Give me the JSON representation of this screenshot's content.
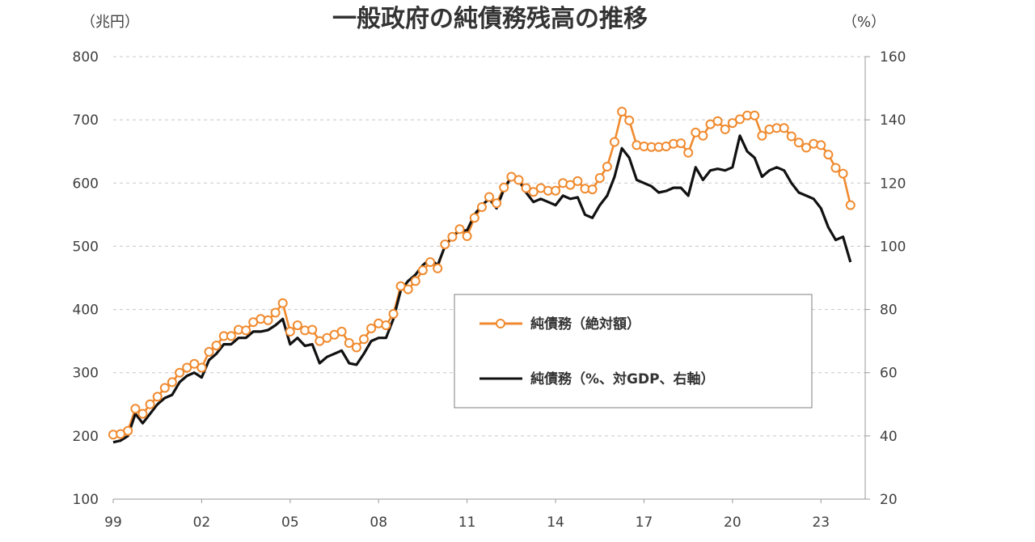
{
  "chart_data": {
    "type": "line",
    "title": "一般政府の純債務残高の推移",
    "y_left_unit": "（兆円）",
    "y_right_unit": "（%）",
    "x_ticks": [
      "99",
      "02",
      "05",
      "08",
      "11",
      "14",
      "17",
      "20",
      "23"
    ],
    "x_tick_values": [
      1999,
      2002,
      2005,
      2008,
      2011,
      2014,
      2017,
      2020,
      2023
    ],
    "xlim": [
      1999,
      2024.5
    ],
    "y_left_ticks": [
      "100",
      "200",
      "300",
      "400",
      "500",
      "600",
      "700",
      "800"
    ],
    "y_left_range": [
      100,
      800
    ],
    "y_right_ticks": [
      "20",
      "40",
      "60",
      "80",
      "100",
      "120",
      "140",
      "160"
    ],
    "y_right_range": [
      20,
      160
    ],
    "grid": "horizontal dashed",
    "legend_position": "center-right",
    "series": [
      {
        "name": "純債務（絶対額）",
        "axis": "left",
        "color": "#F08A2E",
        "marker": "circle-open",
        "x": [
          1999.0,
          1999.25,
          1999.5,
          1999.75,
          2000.0,
          2000.25,
          2000.5,
          2000.75,
          2001.0,
          2001.25,
          2001.5,
          2001.75,
          2002.0,
          2002.25,
          2002.5,
          2002.75,
          2003.0,
          2003.25,
          2003.5,
          2003.75,
          2004.0,
          2004.25,
          2004.5,
          2004.75,
          2005.0,
          2005.25,
          2005.5,
          2005.75,
          2006.0,
          2006.25,
          2006.5,
          2006.75,
          2007.0,
          2007.25,
          2007.5,
          2007.75,
          2008.0,
          2008.25,
          2008.5,
          2008.75,
          2009.0,
          2009.25,
          2009.5,
          2009.75,
          2010.0,
          2010.25,
          2010.5,
          2010.75,
          2011.0,
          2011.25,
          2011.5,
          2011.75,
          2012.0,
          2012.25,
          2012.5,
          2012.75,
          2013.0,
          2013.25,
          2013.5,
          2013.75,
          2014.0,
          2014.25,
          2014.5,
          2014.75,
          2015.0,
          2015.25,
          2015.5,
          2015.75,
          2016.0,
          2016.25,
          2016.5,
          2016.75,
          2017.0,
          2017.25,
          2017.5,
          2017.75,
          2018.0,
          2018.25,
          2018.5,
          2018.75,
          2019.0,
          2019.25,
          2019.5,
          2019.75,
          2020.0,
          2020.25,
          2020.5,
          2020.75,
          2021.0,
          2021.25,
          2021.5,
          2021.75,
          2022.0,
          2022.25,
          2022.5,
          2022.75,
          2023.0,
          2023.25,
          2023.5,
          2023.75,
          2024.0
        ],
        "values": [
          202,
          203,
          208,
          243,
          235,
          250,
          262,
          276,
          285,
          300,
          308,
          314,
          308,
          333,
          343,
          358,
          358,
          368,
          367,
          380,
          385,
          383,
          395,
          410,
          365,
          375,
          367,
          368,
          350,
          355,
          360,
          365,
          347,
          340,
          353,
          370,
          378,
          375,
          393,
          437,
          432,
          445,
          462,
          475,
          465,
          503,
          515,
          527,
          516,
          545,
          562,
          578,
          568,
          593,
          610,
          605,
          592,
          586,
          592,
          588,
          588,
          600,
          597,
          603,
          591,
          590,
          608,
          626,
          665,
          713,
          699,
          660,
          658,
          657,
          657,
          658,
          662,
          663,
          648,
          680,
          675,
          693,
          698,
          685,
          695,
          701,
          707,
          707,
          675,
          685,
          687,
          687,
          674,
          664,
          656,
          662,
          660,
          645,
          624,
          615,
          565
        ]
      },
      {
        "name": "純債務（%、対GDP、右軸）",
        "axis": "right",
        "color": "#111111",
        "marker": "none",
        "x": [
          1999.0,
          1999.25,
          1999.5,
          1999.75,
          2000.0,
          2000.25,
          2000.5,
          2000.75,
          2001.0,
          2001.25,
          2001.5,
          2001.75,
          2002.0,
          2002.25,
          2002.5,
          2002.75,
          2003.0,
          2003.25,
          2003.5,
          2003.75,
          2004.0,
          2004.25,
          2004.5,
          2004.75,
          2005.0,
          2005.25,
          2005.5,
          2005.75,
          2006.0,
          2006.25,
          2006.5,
          2006.75,
          2007.0,
          2007.25,
          2007.5,
          2007.75,
          2008.0,
          2008.25,
          2008.5,
          2008.75,
          2009.0,
          2009.25,
          2009.5,
          2009.75,
          2010.0,
          2010.25,
          2010.5,
          2010.75,
          2011.0,
          2011.25,
          2011.5,
          2011.75,
          2012.0,
          2012.25,
          2012.5,
          2012.75,
          2013.0,
          2013.25,
          2013.5,
          2013.75,
          2014.0,
          2014.25,
          2014.5,
          2014.75,
          2015.0,
          2015.25,
          2015.5,
          2015.75,
          2016.0,
          2016.25,
          2016.5,
          2016.75,
          2017.0,
          2017.25,
          2017.5,
          2017.75,
          2018.0,
          2018.25,
          2018.5,
          2018.75,
          2019.0,
          2019.25,
          2019.5,
          2019.75,
          2020.0,
          2020.25,
          2020.5,
          2020.75,
          2021.0,
          2021.25,
          2021.5,
          2021.75,
          2022.0,
          2022.25,
          2022.5,
          2022.75,
          2023.0,
          2023.25,
          2023.5,
          2023.75,
          2024.0
        ],
        "values": [
          38,
          38.5,
          40,
          47,
          44,
          47,
          50,
          52,
          53,
          57,
          59,
          60,
          58.5,
          64,
          66,
          69,
          69,
          71,
          71,
          73,
          73,
          73.5,
          75,
          77,
          69,
          71,
          68.5,
          69,
          63,
          65,
          66,
          67,
          63,
          62.5,
          66,
          70,
          71,
          71,
          77,
          86,
          89,
          91,
          94,
          96,
          94,
          100,
          103,
          105,
          105,
          110,
          113,
          115,
          112,
          118,
          122,
          121,
          117,
          114,
          115,
          114,
          113,
          116,
          115,
          115.5,
          110,
          109,
          113,
          116,
          122,
          131,
          128,
          121,
          120,
          119,
          117,
          117.5,
          118.5,
          118.5,
          116,
          125,
          121,
          124,
          124.5,
          124,
          125,
          135,
          130,
          128,
          122,
          124,
          125,
          124,
          120,
          117,
          116,
          115,
          112,
          106,
          102,
          103,
          95
        ]
      }
    ]
  }
}
